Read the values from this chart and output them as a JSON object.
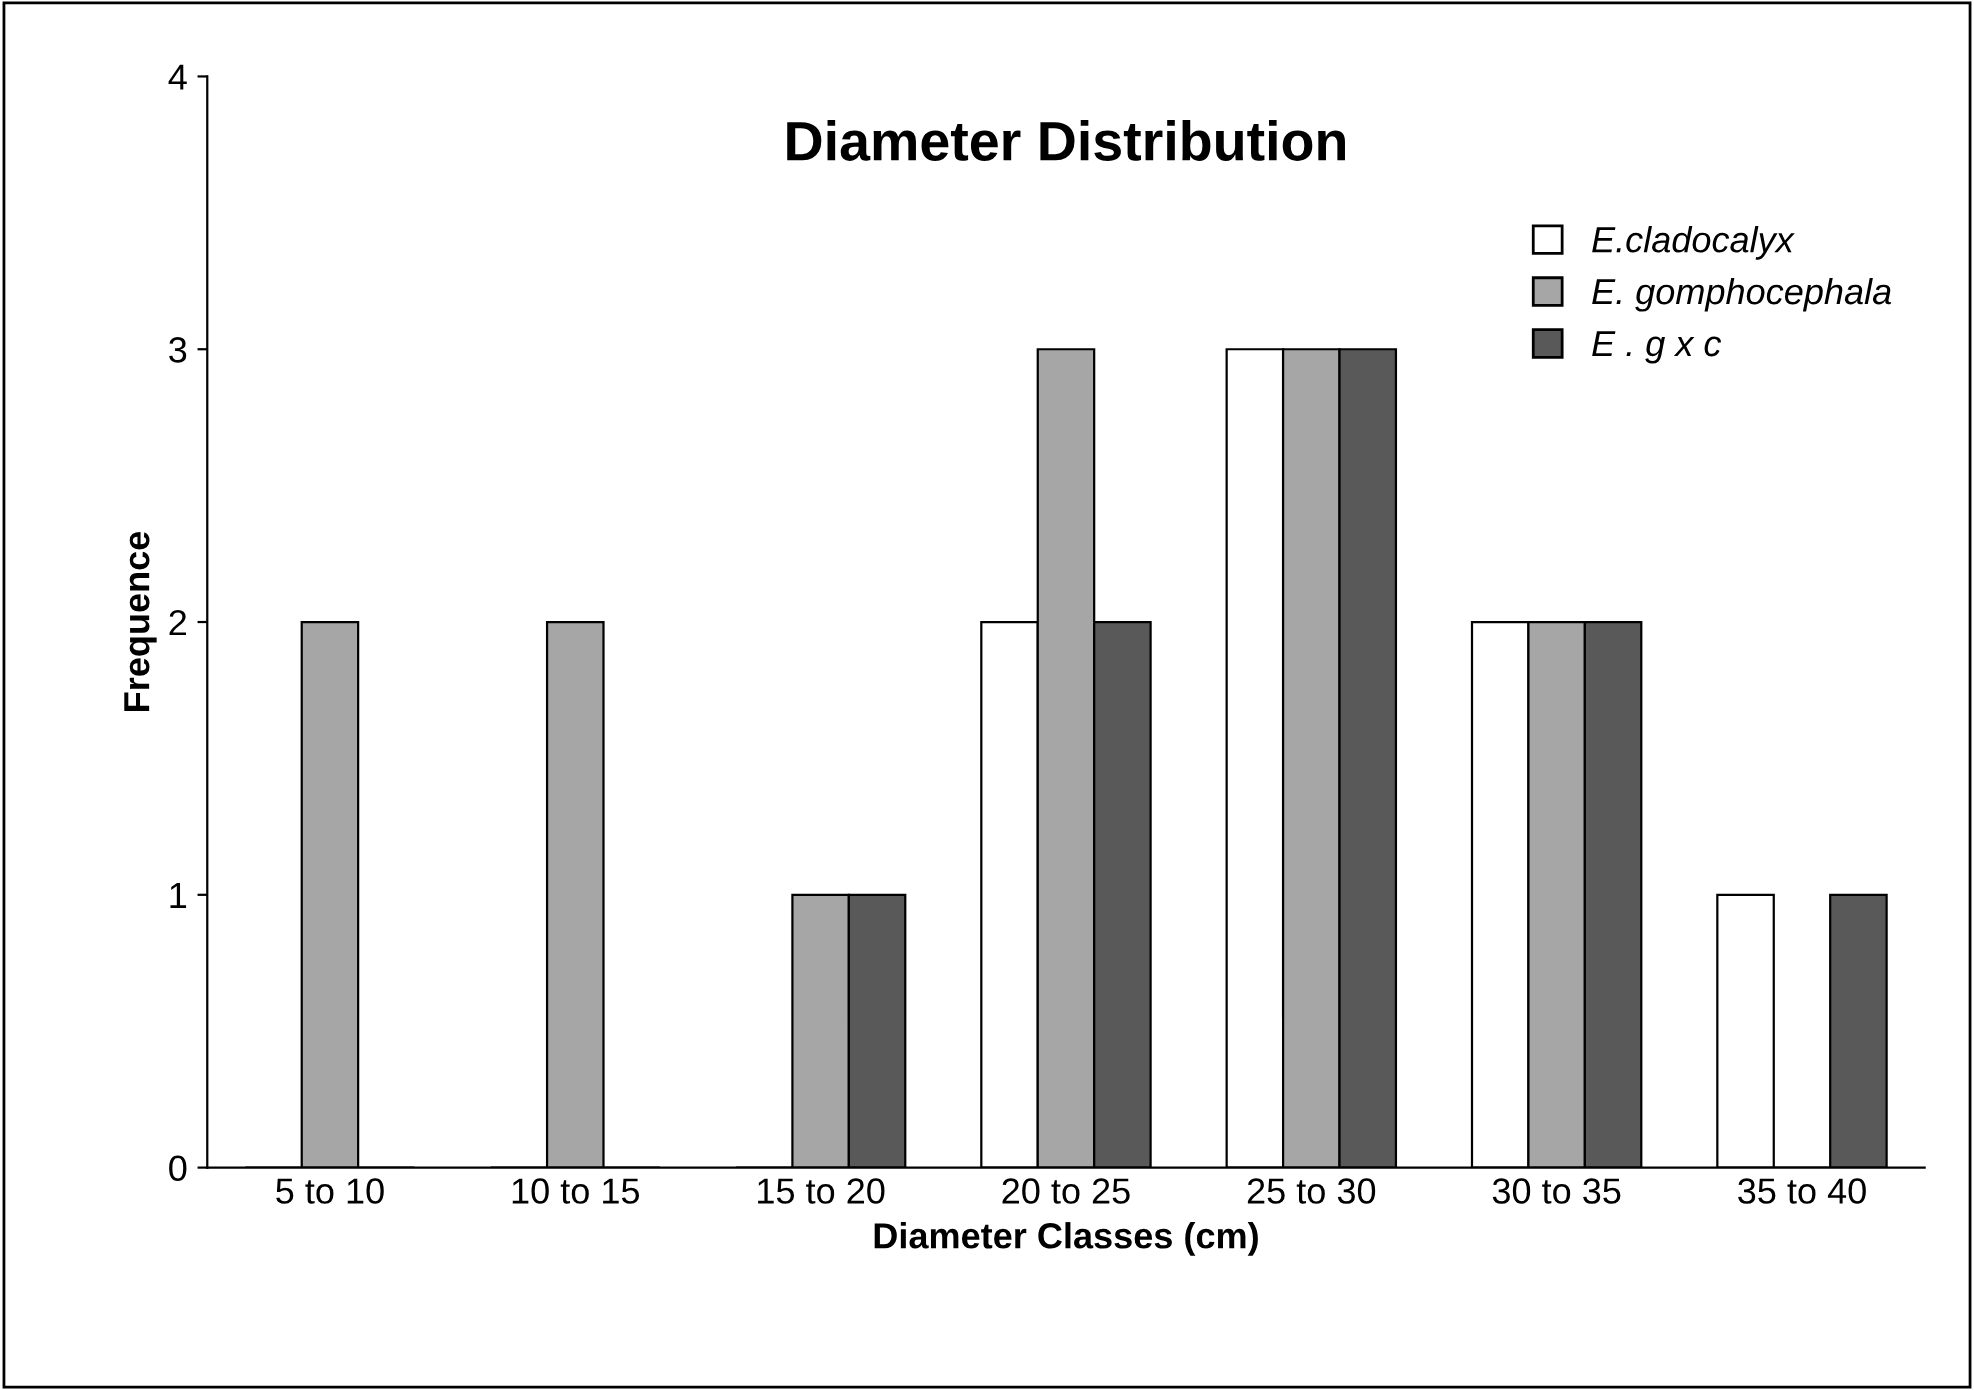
{
  "chart_data": {
    "type": "bar",
    "title": "Diameter Distribution",
    "xlabel": "Diameter Classes (cm)",
    "ylabel": "Frequence",
    "categories": [
      "5 to 10",
      "10 to 15",
      "15 to 20",
      "20 to 25",
      "25 to 30",
      "30 to 35",
      "35 to 40"
    ],
    "series": [
      {
        "name": "E.cladocalyx",
        "color": "#ffffff",
        "values": [
          0,
          0,
          0,
          2,
          3,
          2,
          1
        ]
      },
      {
        "name": "E. gomphocephala",
        "color": "#a6a6a6",
        "values": [
          2,
          2,
          1,
          3,
          3,
          2,
          0
        ]
      },
      {
        "name": "E . g x c",
        "color": "#595959",
        "values": [
          0,
          0,
          1,
          2,
          3,
          2,
          1
        ]
      }
    ],
    "ylim": [
      0,
      4
    ],
    "yticks": [
      0,
      1,
      2,
      3,
      4
    ],
    "grid": false,
    "legend": "right"
  }
}
